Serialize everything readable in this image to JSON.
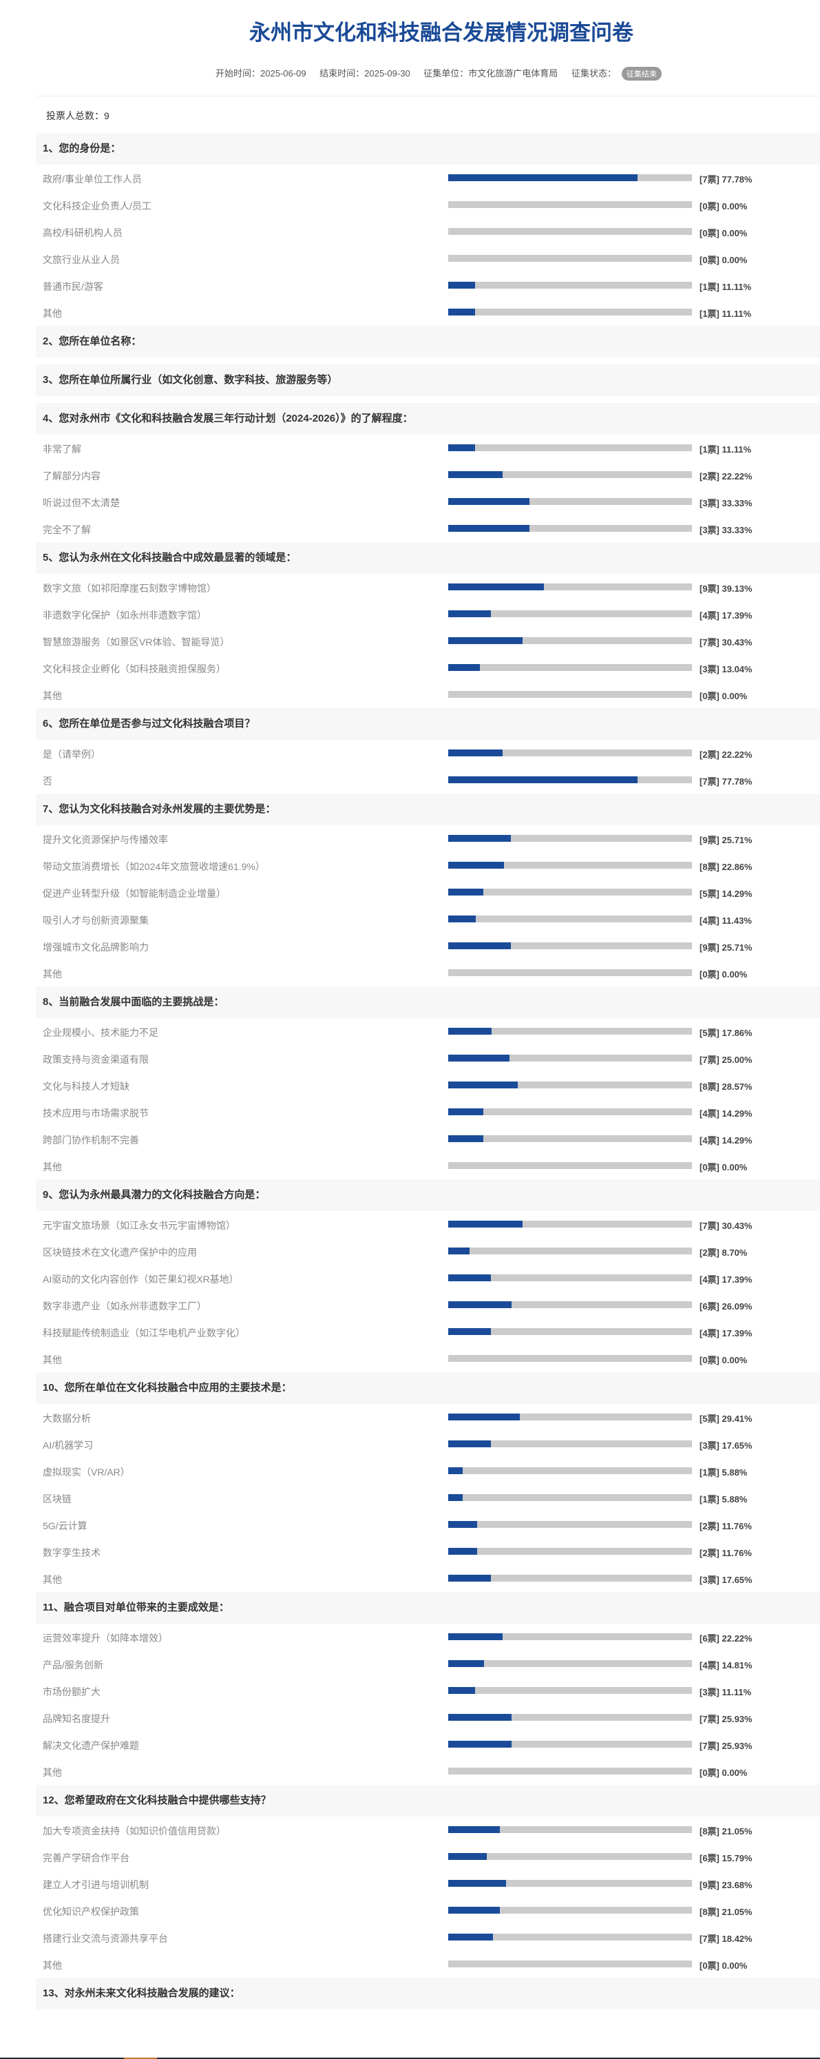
{
  "header": {
    "title": "永州市文化和科技融合发展情况调查问卷",
    "start_label": "开始时间：2025-06-09",
    "end_label": "结束时间：2025-09-30",
    "org_label": "征集单位：市文化旅游广电体育局",
    "status_label": "征集状态：",
    "status_badge": "征集结束"
  },
  "total_voters": "投票人总数：9",
  "colors": {
    "accent": "#1a4a96",
    "bar_fill": "#1a4b99",
    "bar_track": "#cbcbcb",
    "header_bg": "#f7f7f7"
  },
  "questions": [
    {
      "title": "1、您的身份是：",
      "options": [
        {
          "label": "政府/事业单位工作人员",
          "result": "[7票] 77.78%",
          "pct": 77.78
        },
        {
          "label": "文化科技企业负责人/员工",
          "result": "[0票] 0.00%",
          "pct": 0
        },
        {
          "label": "高校/科研机构人员",
          "result": "[0票] 0.00%",
          "pct": 0
        },
        {
          "label": "文旅行业从业人员",
          "result": "[0票] 0.00%",
          "pct": 0
        },
        {
          "label": "普通市民/游客",
          "result": "[1票] 11.11%",
          "pct": 11.11
        },
        {
          "label": "其他",
          "result": "[1票] 11.11%",
          "pct": 11.11
        }
      ]
    },
    {
      "title": "2、您所在单位名称：",
      "options": []
    },
    {
      "title": "3、您所在单位所属行业（如文化创意、数字科技、旅游服务等）",
      "options": []
    },
    {
      "title": "4、您对永州市《文化和科技融合发展三年行动计划（2024-2026）》的了解程度：",
      "options": [
        {
          "label": "非常了解",
          "result": "[1票] 11.11%",
          "pct": 11.11
        },
        {
          "label": "了解部分内容",
          "result": "[2票] 22.22%",
          "pct": 22.22
        },
        {
          "label": "听说过但不太清楚",
          "result": "[3票] 33.33%",
          "pct": 33.33
        },
        {
          "label": "完全不了解",
          "result": "[3票] 33.33%",
          "pct": 33.33
        }
      ]
    },
    {
      "title": "5、您认为永州在文化科技融合中成效最显著的领域是：",
      "options": [
        {
          "label": "数字文旅（如祁阳摩崖石刻数字博物馆）",
          "result": "[9票] 39.13%",
          "pct": 39.13
        },
        {
          "label": "非遗数字化保护（如永州非遗数字馆）",
          "result": "[4票] 17.39%",
          "pct": 17.39
        },
        {
          "label": "智慧旅游服务（如景区VR体验、智能导览）",
          "result": "[7票] 30.43%",
          "pct": 30.43
        },
        {
          "label": "文化科技企业孵化（如科技融资担保服务）",
          "result": "[3票] 13.04%",
          "pct": 13.04
        },
        {
          "label": "其他",
          "result": "[0票] 0.00%",
          "pct": 0
        }
      ]
    },
    {
      "title": "6、您所在单位是否参与过文化科技融合项目？",
      "options": [
        {
          "label": "是（请举例）",
          "result": "[2票] 22.22%",
          "pct": 22.22
        },
        {
          "label": "否",
          "result": "[7票] 77.78%",
          "pct": 77.78
        }
      ]
    },
    {
      "title": "7、您认为文化科技融合对永州发展的主要优势是：",
      "options": [
        {
          "label": "提升文化资源保护与传播效率",
          "result": "[9票] 25.71%",
          "pct": 25.71
        },
        {
          "label": "带动文旅消费增长（如2024年文旅营收增速61.9%）",
          "result": "[8票] 22.86%",
          "pct": 22.86
        },
        {
          "label": "促进产业转型升级（如智能制造企业增量）",
          "result": "[5票] 14.29%",
          "pct": 14.29
        },
        {
          "label": "吸引人才与创新资源聚集",
          "result": "[4票] 11.43%",
          "pct": 11.43
        },
        {
          "label": "增强城市文化品牌影响力",
          "result": "[9票] 25.71%",
          "pct": 25.71
        },
        {
          "label": "其他",
          "result": "[0票] 0.00%",
          "pct": 0
        }
      ]
    },
    {
      "title": "8、当前融合发展中面临的主要挑战是：",
      "options": [
        {
          "label": "企业规模小、技术能力不足",
          "result": "[5票] 17.86%",
          "pct": 17.86
        },
        {
          "label": "政策支持与资金渠道有限",
          "result": "[7票] 25.00%",
          "pct": 25.0
        },
        {
          "label": "文化与科技人才短缺",
          "result": "[8票] 28.57%",
          "pct": 28.57
        },
        {
          "label": "技术应用与市场需求脱节",
          "result": "[4票] 14.29%",
          "pct": 14.29
        },
        {
          "label": "跨部门协作机制不完善",
          "result": "[4票] 14.29%",
          "pct": 14.29
        },
        {
          "label": "其他",
          "result": "[0票] 0.00%",
          "pct": 0
        }
      ]
    },
    {
      "title": "9、您认为永州最具潜力的文化科技融合方向是：",
      "options": [
        {
          "label": "元宇宙文旅场景（如江永女书元宇宙博物馆）",
          "result": "[7票] 30.43%",
          "pct": 30.43
        },
        {
          "label": "区块链技术在文化遗产保护中的应用",
          "result": "[2票] 8.70%",
          "pct": 8.7
        },
        {
          "label": "AI驱动的文化内容创作（如芒果幻视XR基地）",
          "result": "[4票] 17.39%",
          "pct": 17.39
        },
        {
          "label": "数字非遗产业（如永州非遗数字工厂）",
          "result": "[6票] 26.09%",
          "pct": 26.09
        },
        {
          "label": "科技赋能传统制造业（如江华电机产业数字化）",
          "result": "[4票] 17.39%",
          "pct": 17.39
        },
        {
          "label": "其他",
          "result": "[0票] 0.00%",
          "pct": 0
        }
      ]
    },
    {
      "title": "10、您所在单位在文化科技融合中应用的主要技术是：",
      "options": [
        {
          "label": "大数据分析",
          "result": "[5票] 29.41%",
          "pct": 29.41
        },
        {
          "label": "AI/机器学习",
          "result": "[3票] 17.65%",
          "pct": 17.65
        },
        {
          "label": "虚拟现实（VR/AR）",
          "result": "[1票] 5.88%",
          "pct": 5.88
        },
        {
          "label": "区块链",
          "result": "[1票] 5.88%",
          "pct": 5.88
        },
        {
          "label": "5G/云计算",
          "result": "[2票] 11.76%",
          "pct": 11.76
        },
        {
          "label": "数字孪生技术",
          "result": "[2票] 11.76%",
          "pct": 11.76
        },
        {
          "label": "其他",
          "result": "[3票] 17.65%",
          "pct": 17.65
        }
      ]
    },
    {
      "title": "11、融合项目对单位带来的主要成效是：",
      "options": [
        {
          "label": "运营效率提升（如降本增效）",
          "result": "[6票] 22.22%",
          "pct": 22.22
        },
        {
          "label": "产品/服务创新",
          "result": "[4票] 14.81%",
          "pct": 14.81
        },
        {
          "label": "市场份额扩大",
          "result": "[3票] 11.11%",
          "pct": 11.11
        },
        {
          "label": "品牌知名度提升",
          "result": "[7票] 25.93%",
          "pct": 25.93
        },
        {
          "label": "解决文化遗产保护难题",
          "result": "[7票] 25.93%",
          "pct": 25.93
        },
        {
          "label": "其他",
          "result": "[0票] 0.00%",
          "pct": 0
        }
      ]
    },
    {
      "title": "12、您希望政府在文化科技融合中提供哪些支持？",
      "options": [
        {
          "label": "加大专项资金扶持（如知识价值信用贷款）",
          "result": "[8票] 21.05%",
          "pct": 21.05
        },
        {
          "label": "完善产学研合作平台",
          "result": "[6票] 15.79%",
          "pct": 15.79
        },
        {
          "label": "建立人才引进与培训机制",
          "result": "[9票] 23.68%",
          "pct": 23.68
        },
        {
          "label": "优化知识产权保护政策",
          "result": "[8票] 21.05%",
          "pct": 21.05
        },
        {
          "label": "搭建行业交流与资源共享平台",
          "result": "[7票] 18.42%",
          "pct": 18.42
        },
        {
          "label": "其他",
          "result": "[0票] 0.00%",
          "pct": 0
        }
      ]
    },
    {
      "title": "13、对永州未来文化科技融合发展的建议：",
      "options": []
    }
  ]
}
